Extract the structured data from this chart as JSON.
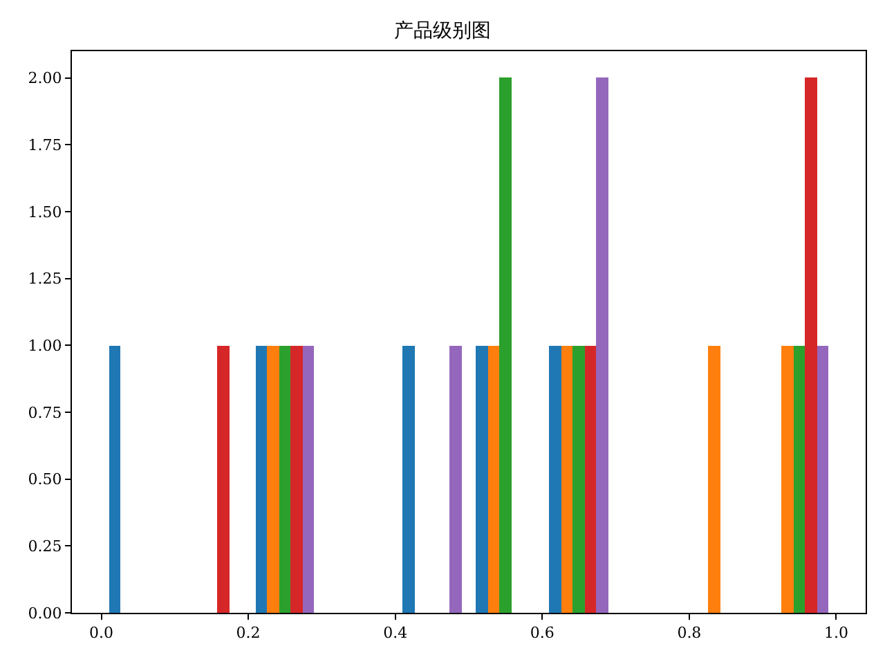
{
  "chart_data": {
    "type": "histogram",
    "title": "产品级别图",
    "bins": [
      0.0,
      0.1,
      0.2,
      0.3,
      0.4,
      0.5,
      0.6,
      0.7,
      0.8,
      0.9,
      1.0
    ],
    "series": [
      {
        "color": "#1f77b4",
        "values": [
          1,
          0,
          1,
          0,
          1,
          1,
          1,
          0,
          0,
          0
        ]
      },
      {
        "color": "#ff7f0e",
        "values": [
          0,
          0,
          1,
          0,
          0,
          1,
          1,
          0,
          1,
          1
        ]
      },
      {
        "color": "#2ca02c",
        "values": [
          0,
          0,
          1,
          0,
          0,
          2,
          1,
          0,
          0,
          1
        ]
      },
      {
        "color": "#d62728",
        "values": [
          0,
          1,
          1,
          0,
          0,
          0,
          1,
          0,
          0,
          2
        ]
      },
      {
        "color": "#9467bd",
        "values": [
          0,
          0,
          1,
          0,
          1,
          0,
          2,
          0,
          0,
          1
        ]
      }
    ],
    "xlim": [
      -0.04,
      1.04
    ],
    "xticks": [
      {
        "value": 0.0,
        "label": "0.0"
      },
      0.2,
      0.4,
      0.6,
      0.8,
      {
        "value": 1.0,
        "label": "1.0"
      }
    ],
    "ylim": [
      0,
      2.1
    ],
    "yticks": [
      {
        "value": 0,
        "label": "0.00"
      },
      {
        "value": 0.25,
        "label": "0.25"
      },
      {
        "value": 0.5,
        "label": "0.50"
      },
      {
        "value": 0.75,
        "label": "0.75"
      },
      {
        "value": 1,
        "label": "1.00"
      },
      {
        "value": 1.25,
        "label": "1.25"
      },
      {
        "value": 1.5,
        "label": "1.50"
      },
      {
        "value": 1.75,
        "label": "1.75"
      },
      {
        "value": 2,
        "label": "2.00"
      }
    ]
  }
}
